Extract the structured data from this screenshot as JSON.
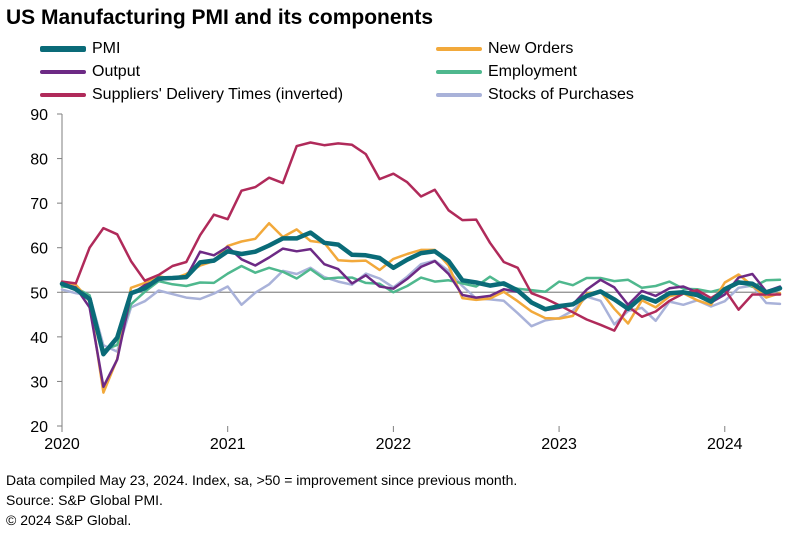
{
  "chart_data": {
    "type": "line",
    "title": "US Manufacturing PMI and its components",
    "ylim": [
      20,
      90
    ],
    "yticks": [
      20,
      30,
      40,
      50,
      60,
      70,
      80,
      90
    ],
    "xlim": [
      "2020-01",
      "2024-05"
    ],
    "xticks": [
      "2020",
      "2021",
      "2022",
      "2023",
      "2024"
    ],
    "reference_line": 50,
    "grid": false,
    "legend_position": "top",
    "x": [
      "2020-01",
      "2020-02",
      "2020-03",
      "2020-04",
      "2020-05",
      "2020-06",
      "2020-07",
      "2020-08",
      "2020-09",
      "2020-10",
      "2020-11",
      "2020-12",
      "2021-01",
      "2021-02",
      "2021-03",
      "2021-04",
      "2021-05",
      "2021-06",
      "2021-07",
      "2021-08",
      "2021-09",
      "2021-10",
      "2021-11",
      "2021-12",
      "2022-01",
      "2022-02",
      "2022-03",
      "2022-04",
      "2022-05",
      "2022-06",
      "2022-07",
      "2022-08",
      "2022-09",
      "2022-10",
      "2022-11",
      "2022-12",
      "2023-01",
      "2023-02",
      "2023-03",
      "2023-04",
      "2023-05",
      "2023-06",
      "2023-07",
      "2023-08",
      "2023-09",
      "2023-10",
      "2023-11",
      "2023-12",
      "2024-01",
      "2024-02",
      "2024-03",
      "2024-04",
      "2024-05"
    ],
    "series": [
      {
        "name": "PMI",
        "color": "#0a6b78",
        "width": 4.5,
        "values": [
          51.9,
          50.7,
          48.5,
          36.1,
          39.8,
          49.8,
          50.9,
          53.1,
          53.2,
          53.4,
          56.7,
          57.1,
          59.2,
          58.6,
          59.1,
          60.5,
          62.1,
          62.1,
          63.4,
          61.1,
          60.7,
          58.4,
          58.3,
          57.7,
          55.5,
          57.3,
          58.8,
          59.2,
          57.0,
          52.7,
          52.2,
          51.5,
          52.0,
          50.4,
          47.7,
          46.2,
          46.9,
          47.3,
          49.2,
          50.2,
          48.4,
          46.3,
          49.0,
          47.9,
          49.8,
          50.0,
          49.4,
          47.9,
          50.7,
          52.2,
          51.9,
          50.0,
          50.9
        ]
      },
      {
        "name": "New Orders",
        "color": "#f2a93b",
        "width": 2.5,
        "values": [
          52.4,
          51.7,
          48.0,
          27.5,
          35.0,
          51.0,
          52.1,
          53.6,
          53.0,
          54.1,
          56.0,
          57.0,
          60.4,
          61.4,
          62.0,
          65.5,
          62.4,
          64.1,
          61.5,
          61.1,
          57.2,
          57.0,
          57.1,
          55.0,
          57.5,
          58.6,
          59.5,
          59.5,
          56.0,
          48.7,
          48.3,
          48.6,
          50.1,
          48.0,
          45.7,
          44.2,
          44.1,
          44.7,
          49.7,
          50.2,
          46.3,
          43.0,
          48.2,
          46.6,
          49.1,
          49.8,
          48.2,
          47.2,
          52.2,
          54.0,
          51.5,
          48.8,
          49.8
        ]
      },
      {
        "name": "Output",
        "color": "#6d2a85",
        "width": 2.5,
        "values": [
          52.0,
          51.1,
          46.6,
          28.8,
          34.9,
          49.5,
          51.6,
          52.8,
          53.3,
          53.4,
          59.1,
          58.3,
          60.2,
          57.4,
          56.0,
          57.8,
          59.8,
          59.2,
          59.7,
          56.3,
          55.2,
          52.0,
          53.8,
          51.3,
          50.8,
          53.0,
          55.7,
          57.0,
          54.1,
          49.4,
          48.8,
          49.2,
          50.7,
          50.1,
          47.7,
          46.0,
          46.5,
          47.3,
          50.6,
          52.8,
          51.1,
          47.2,
          50.3,
          49.2,
          50.9,
          51.3,
          50.0,
          47.7,
          49.5,
          53.3,
          54.1,
          50.2,
          51.3
        ]
      },
      {
        "name": "Employment",
        "color": "#4fb88e",
        "width": 2.5,
        "values": [
          51.3,
          51.0,
          49.3,
          37.0,
          38.2,
          47.3,
          50.1,
          52.5,
          51.8,
          51.4,
          52.2,
          52.1,
          54.2,
          55.9,
          54.4,
          55.5,
          54.6,
          53.1,
          55.2,
          53.0,
          53.3,
          53.3,
          52.1,
          51.9,
          50.0,
          51.4,
          53.3,
          52.4,
          52.7,
          52.0,
          51.3,
          53.5,
          51.6,
          50.8,
          50.5,
          50.1,
          52.4,
          51.6,
          53.2,
          53.2,
          52.5,
          52.8,
          51.0,
          51.4,
          52.4,
          50.8,
          50.7,
          50.1,
          50.9,
          52.5,
          51.2,
          52.7,
          52.8
        ]
      },
      {
        "name": "Suppliers' Delivery Times (inverted)",
        "color": "#b02a5a",
        "width": 2.5,
        "values": [
          52.4,
          52.0,
          60.0,
          64.4,
          63.0,
          57.0,
          52.6,
          53.9,
          55.9,
          56.8,
          62.8,
          67.4,
          66.4,
          72.8,
          73.6,
          75.7,
          74.5,
          82.8,
          83.6,
          83.0,
          83.4,
          83.1,
          81.0,
          75.4,
          76.6,
          74.7,
          71.5,
          73.0,
          68.4,
          66.2,
          66.3,
          61.1,
          56.8,
          55.5,
          49.8,
          48.6,
          47.1,
          45.5,
          43.9,
          42.7,
          41.4,
          46.8,
          44.5,
          45.7,
          48.1,
          49.7,
          50.5,
          48.7,
          50.6,
          46.1,
          49.5,
          49.5,
          49.5
        ]
      },
      {
        "name": "Stocks of Purchases",
        "color": "#a9b2d9",
        "width": 2.5,
        "values": [
          50.6,
          49.8,
          49.3,
          38.1,
          36.7,
          46.6,
          48.0,
          50.4,
          49.6,
          48.8,
          48.5,
          49.7,
          51.3,
          47.2,
          49.9,
          51.8,
          54.8,
          54.1,
          55.5,
          53.4,
          52.4,
          51.7,
          54.2,
          53.1,
          51.1,
          53.5,
          56.3,
          57.1,
          54.8,
          51.4,
          48.6,
          48.4,
          48.1,
          45.3,
          42.4,
          43.7,
          44.2,
          45.9,
          49.0,
          48.1,
          42.8,
          45.8,
          46.5,
          43.6,
          47.9,
          47.2,
          48.2,
          46.8,
          48.0,
          51.0,
          51.5,
          47.6,
          47.4
        ]
      }
    ]
  },
  "footer": {
    "line1": "Data compiled May 23, 2024. Index,  sa, >50 = improvement since previous month.",
    "line2": "Source: S&P Global PMI.",
    "line3": "© 2024 S&P Global."
  }
}
